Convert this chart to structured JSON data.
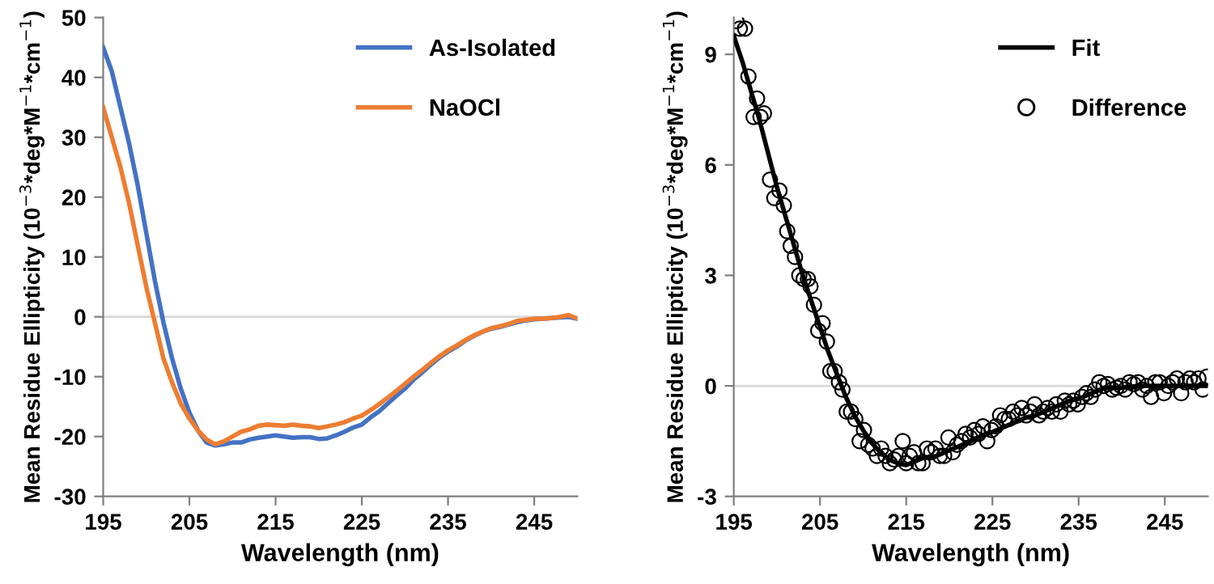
{
  "chart_data": [
    {
      "type": "line",
      "xlabel": "Wavelength (nm)",
      "ylabel": "Mean Residue Ellipticity (10$^{−3}$*deg*M$^{−1}$*cm$^{−1}$)",
      "xlim": [
        195,
        250
      ],
      "xticks": [
        195,
        205,
        215,
        225,
        235,
        245
      ],
      "ylim": [
        -30,
        50
      ],
      "yticks": [
        -30,
        -20,
        -10,
        0,
        10,
        20,
        30,
        40,
        50
      ],
      "legend": "top right",
      "grid": false,
      "ref_lines": [
        {
          "axis": "y",
          "value": 0,
          "color": "#d9d9d9"
        }
      ],
      "x": [
        195,
        196,
        197,
        198,
        199,
        200,
        201,
        202,
        203,
        204,
        205,
        206,
        207,
        208,
        209,
        210,
        211,
        212,
        213,
        214,
        215,
        216,
        217,
        218,
        219,
        220,
        221,
        222,
        223,
        224,
        225,
        226,
        227,
        228,
        229,
        230,
        231,
        232,
        233,
        234,
        235,
        236,
        237,
        238,
        239,
        240,
        241,
        242,
        243,
        244,
        245,
        246,
        247,
        248,
        249,
        250
      ],
      "series": [
        {
          "name": "As-Isolated",
          "color": "#4472c4",
          "values": [
            45,
            41,
            35,
            29,
            22,
            14,
            6,
            -1,
            -7,
            -12,
            -16,
            -19,
            -21,
            -21.5,
            -21.3,
            -21,
            -21,
            -20.5,
            -20.2,
            -20,
            -19.8,
            -20,
            -20.2,
            -20.1,
            -20.1,
            -20.4,
            -20.3,
            -19.8,
            -19.2,
            -18.5,
            -18,
            -16.8,
            -15.8,
            -14.5,
            -13.2,
            -12,
            -10.5,
            -9.3,
            -8,
            -6.8,
            -5.8,
            -5,
            -4,
            -3.2,
            -2.5,
            -2,
            -1.7,
            -1.3,
            -0.9,
            -0.6,
            -0.4,
            -0.3,
            -0.2,
            -0.1,
            0,
            -0.3
          ]
        },
        {
          "name": "NaOCl",
          "color": "#ed7d31",
          "values": [
            35,
            30,
            25,
            19,
            12,
            5,
            -1,
            -7,
            -11,
            -14.5,
            -17,
            -19,
            -20.5,
            -21.3,
            -20.8,
            -20,
            -19.2,
            -18.8,
            -18.2,
            -18,
            -18.1,
            -18.2,
            -18,
            -18.2,
            -18.3,
            -18.6,
            -18.3,
            -18,
            -17.6,
            -17,
            -16.5,
            -15.6,
            -14.6,
            -13.5,
            -12.4,
            -11.2,
            -10,
            -8.9,
            -7.7,
            -6.6,
            -5.6,
            -4.8,
            -3.9,
            -3.1,
            -2.5,
            -1.9,
            -1.6,
            -1.2,
            -0.7,
            -0.5,
            -0.3,
            -0.3,
            -0.2,
            0,
            0.3,
            -0.3
          ]
        }
      ]
    },
    {
      "type": "line",
      "xlabel": "Wavelength (nm)",
      "ylabel": "Mean Residue Ellipticity (10$^{−3}$*deg*M$^{−1}$*cm$^{−1}$)",
      "xlim": [
        195,
        250
      ],
      "xticks": [
        195,
        205,
        215,
        225,
        235,
        245
      ],
      "ylim": [
        -3,
        10
      ],
      "yticks": [
        -3,
        0,
        3,
        6,
        9
      ],
      "legend": "top right",
      "grid": false,
      "ref_lines": [
        {
          "axis": "y",
          "value": 0,
          "color": "#d9d9d9"
        }
      ],
      "series": [
        {
          "name": "Fit",
          "type": "line",
          "color": "#000000",
          "marker": "none",
          "x": [
            195,
            196,
            197,
            198,
            199,
            200,
            201,
            202,
            203,
            204,
            205,
            206,
            207,
            208,
            209,
            210,
            211,
            212,
            213,
            214,
            215,
            216,
            217,
            218,
            219,
            220,
            221,
            222,
            223,
            224,
            225,
            226,
            227,
            228,
            229,
            230,
            231,
            232,
            233,
            234,
            235,
            236,
            237,
            238,
            239,
            240,
            242,
            244,
            246,
            248,
            250
          ],
          "values": [
            9.5,
            8.8,
            8.0,
            7.2,
            6.3,
            5.4,
            4.6,
            3.8,
            3.0,
            2.3,
            1.6,
            0.9,
            0.3,
            -0.3,
            -0.8,
            -1.2,
            -1.55,
            -1.8,
            -2.0,
            -2.1,
            -2.15,
            -2.05,
            -1.95,
            -1.95,
            -1.85,
            -1.75,
            -1.65,
            -1.55,
            -1.45,
            -1.35,
            -1.25,
            -1.15,
            -1.05,
            -0.95,
            -0.85,
            -0.8,
            -0.7,
            -0.6,
            -0.5,
            -0.4,
            -0.35,
            -0.25,
            -0.15,
            -0.05,
            -0.05,
            -0.05,
            0,
            0,
            0,
            0,
            0
          ]
        },
        {
          "name": "Difference",
          "type": "scatter",
          "color": "#000000",
          "marker": "circle",
          "x": [
            195.3,
            195.7,
            196.3,
            196.7,
            197.3,
            197.7,
            198.1,
            198.5,
            199.2,
            199.7,
            200.3,
            200.8,
            201.2,
            201.6,
            202.1,
            202.6,
            203.1,
            203.6,
            203.9,
            204.3,
            204.8,
            205.3,
            205.8,
            206.2,
            206.7,
            207.2,
            207.6,
            208.1,
            208.6,
            209.1,
            209.6,
            210.1,
            210.6,
            211.1,
            211.6,
            212.1,
            212.6,
            213.1,
            213.6,
            214.1,
            214.6,
            215.0,
            215.4,
            215.9,
            216.4,
            216.9,
            217.4,
            217.9,
            218.4,
            218.9,
            219.4,
            219.9,
            220.4,
            220.9,
            221.4,
            221.9,
            222.4,
            222.9,
            223.4,
            223.9,
            224.4,
            224.9,
            225.4,
            225.9,
            226.4,
            226.9,
            227.4,
            227.9,
            228.4,
            228.9,
            229.4,
            229.9,
            230.4,
            230.9,
            231.4,
            231.9,
            232.4,
            232.9,
            233.4,
            233.9,
            234.4,
            234.9,
            235.4,
            235.9,
            236.4,
            236.9,
            237.4,
            237.9,
            238.4,
            238.9,
            239.4,
            239.9,
            240.4,
            240.9,
            241.4,
            241.9,
            242.4,
            242.9,
            243.4,
            243.9,
            244.4,
            244.9,
            245.4,
            245.9,
            246.4,
            246.9,
            247.4,
            247.9,
            248.4,
            248.9,
            249.4,
            249.9
          ],
          "values": [
            9.9,
            9.7,
            9.7,
            8.4,
            7.3,
            7.8,
            7.3,
            7.4,
            5.6,
            5.1,
            5.3,
            4.9,
            4.2,
            3.8,
            3.5,
            3.0,
            2.9,
            2.9,
            2.7,
            2.2,
            1.5,
            1.7,
            1.2,
            0.4,
            0.4,
            0.1,
            -0.1,
            -0.7,
            -0.7,
            -0.9,
            -1.5,
            -1.2,
            -1.6,
            -1.7,
            -1.9,
            -1.7,
            -1.9,
            -2.1,
            -2.0,
            -1.9,
            -1.5,
            -2.1,
            -1.9,
            -1.8,
            -2.1,
            -2.1,
            -1.7,
            -1.8,
            -1.7,
            -1.9,
            -1.9,
            -1.4,
            -1.8,
            -1.6,
            -1.5,
            -1.3,
            -1.4,
            -1.2,
            -1.3,
            -1.1,
            -1.5,
            -1.2,
            -1.1,
            -0.8,
            -0.9,
            -0.9,
            -0.7,
            -0.8,
            -0.6,
            -0.8,
            -0.7,
            -0.5,
            -0.8,
            -0.7,
            -0.6,
            -0.7,
            -0.5,
            -0.7,
            -0.4,
            -0.5,
            -0.4,
            -0.5,
            -0.3,
            -0.2,
            -0.3,
            -0.1,
            0.1,
            0.0,
            0.05,
            -0.1,
            -0.05,
            0.0,
            -0.1,
            0.1,
            0.05,
            0.1,
            -0.1,
            0.0,
            -0.3,
            0.1,
            0.1,
            -0.2,
            0.0,
            0.1,
            0.2,
            -0.2,
            0.1,
            0.2,
            0.1,
            0.2,
            -0.1,
            0.25
          ]
        }
      ]
    }
  ]
}
